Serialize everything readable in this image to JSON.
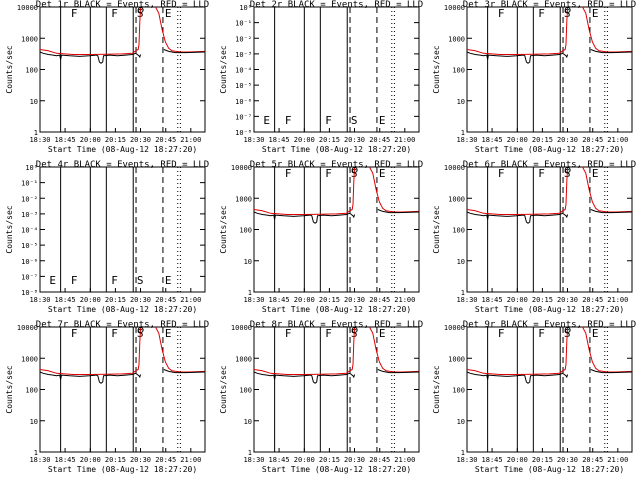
{
  "figure": {
    "grid_rows": 3,
    "grid_cols": 3
  },
  "chart_data": [
    {
      "type": "line",
      "title": "Det 1r BLACK = Events, RED = LLD",
      "xlabel": "Start Time (08-Aug-12 18:27:20)",
      "ylabel": "Counts/sec",
      "y_scale": "log",
      "ylim": [
        1,
        10000
      ],
      "y_ticklabels": [
        "1",
        "10",
        "100",
        "1000",
        "10000"
      ],
      "x_ticklabels": [
        "18:30",
        "18:45",
        "20:00",
        "20:15",
        "20:30",
        "20:45",
        "21:00"
      ],
      "variant": "normal",
      "markers": [
        "F",
        "F",
        "S",
        "E"
      ]
    },
    {
      "type": "line",
      "title": "Det 2r BLACK = Events, RED = LLD",
      "xlabel": "Start Time (08-Aug-12 18:27:20)",
      "ylabel": "Counts/sec",
      "y_scale": "log",
      "ylim": [
        1,
        1e-08
      ],
      "y_ticklabels": [
        "10⁻⁸",
        "10⁻⁷",
        "10⁻⁶",
        "10⁻⁵",
        "10⁻⁴",
        "10⁻³",
        "10⁻²",
        "10⁻¹",
        "10⁰"
      ],
      "x_ticklabels": [
        "18:30",
        "18:45",
        "20:00",
        "20:15",
        "20:30",
        "20:45",
        "21:00"
      ],
      "variant": "empty",
      "markers": [
        "E",
        "F",
        "F",
        "S",
        "E"
      ]
    },
    {
      "type": "line",
      "title": "Det 3r BLACK = Events, RED = LLD",
      "xlabel": "Start Time (08-Aug-12 18:27:20)",
      "ylabel": "Counts/sec",
      "y_scale": "log",
      "ylim": [
        1,
        10000
      ],
      "y_ticklabels": [
        "1",
        "10",
        "100",
        "1000",
        "10000"
      ],
      "x_ticklabels": [
        "18:30",
        "18:45",
        "20:00",
        "20:15",
        "20:30",
        "20:45",
        "21:00"
      ],
      "variant": "normal",
      "markers": [
        "F",
        "F",
        "S",
        "E"
      ]
    },
    {
      "type": "line",
      "title": "Det 4r BLACK = Events, RED = LLD",
      "xlabel": "Start Time (08-Aug-12 18:27:20)",
      "ylabel": "Counts/sec",
      "y_scale": "log",
      "ylim": [
        1,
        1e-08
      ],
      "y_ticklabels": [
        "10⁻⁸",
        "10⁻⁷",
        "10⁻⁶",
        "10⁻⁵",
        "10⁻⁴",
        "10⁻³",
        "10⁻²",
        "10⁻¹",
        "10⁰"
      ],
      "x_ticklabels": [
        "18:30",
        "18:45",
        "20:00",
        "20:15",
        "20:30",
        "20:45",
        "21:00"
      ],
      "variant": "empty",
      "markers": [
        "E",
        "F",
        "F",
        "S",
        "E"
      ]
    },
    {
      "type": "line",
      "title": "Det 5r BLACK = Events, RED = LLD",
      "xlabel": "Start Time (08-Aug-12 18:27:20)",
      "ylabel": "Counts/sec",
      "y_scale": "log",
      "ylim": [
        1,
        10000
      ],
      "y_ticklabels": [
        "1",
        "10",
        "100",
        "1000",
        "10000"
      ],
      "x_ticklabels": [
        "18:30",
        "18:45",
        "20:00",
        "20:15",
        "20:30",
        "20:45",
        "21:00"
      ],
      "variant": "normal",
      "markers": [
        "F",
        "F",
        "S",
        "E"
      ]
    },
    {
      "type": "line",
      "title": "Det 6r BLACK = Events, RED = LLD",
      "xlabel": "Start Time (08-Aug-12 18:27:20)",
      "ylabel": "Counts/sec",
      "y_scale": "log",
      "ylim": [
        1,
        10000
      ],
      "y_ticklabels": [
        "1",
        "10",
        "100",
        "1000",
        "10000"
      ],
      "x_ticklabels": [
        "18:30",
        "18:45",
        "20:00",
        "20:15",
        "20:30",
        "20:45",
        "21:00"
      ],
      "variant": "normal",
      "markers": [
        "F",
        "F",
        "S",
        "E"
      ]
    },
    {
      "type": "line",
      "title": "Det 7r BLACK = Events, RED = LLD",
      "xlabel": "Start Time (08-Aug-12 18:27:20)",
      "ylabel": "Counts/sec",
      "y_scale": "log",
      "ylim": [
        1,
        10000
      ],
      "y_ticklabels": [
        "1",
        "10",
        "100",
        "1000",
        "10000"
      ],
      "x_ticklabels": [
        "18:30",
        "18:45",
        "20:00",
        "20:15",
        "20:30",
        "20:45",
        "21:00"
      ],
      "variant": "normal",
      "markers": [
        "F",
        "F",
        "S",
        "E"
      ]
    },
    {
      "type": "line",
      "title": "Det 8r BLACK = Events, RED = LLD",
      "xlabel": "Start Time (08-Aug-12 18:27:20)",
      "ylabel": "Counts/sec",
      "y_scale": "log",
      "ylim": [
        1,
        10000
      ],
      "y_ticklabels": [
        "1",
        "10",
        "100",
        "1000",
        "10000"
      ],
      "x_ticklabels": [
        "18:30",
        "18:45",
        "20:00",
        "20:15",
        "20:30",
        "20:45",
        "21:00"
      ],
      "variant": "normal",
      "markers": [
        "F",
        "F",
        "S",
        "E"
      ]
    },
    {
      "type": "line",
      "title": "Det 9r BLACK = Events, RED = LLD",
      "xlabel": "Start Time (08-Aug-12 18:27:20)",
      "ylabel": "Counts/sec",
      "y_scale": "log",
      "ylim": [
        1,
        10000
      ],
      "y_ticklabels": [
        "1",
        "10",
        "100",
        "1000",
        "10000"
      ],
      "x_ticklabels": [
        "18:30",
        "18:45",
        "20:00",
        "20:15",
        "20:30",
        "20:45",
        "21:00"
      ],
      "variant": "normal",
      "markers": [
        "F",
        "F",
        "S",
        "E"
      ]
    }
  ],
  "series_style": {
    "events_color": "#000000",
    "lld_color": "#e00000"
  }
}
